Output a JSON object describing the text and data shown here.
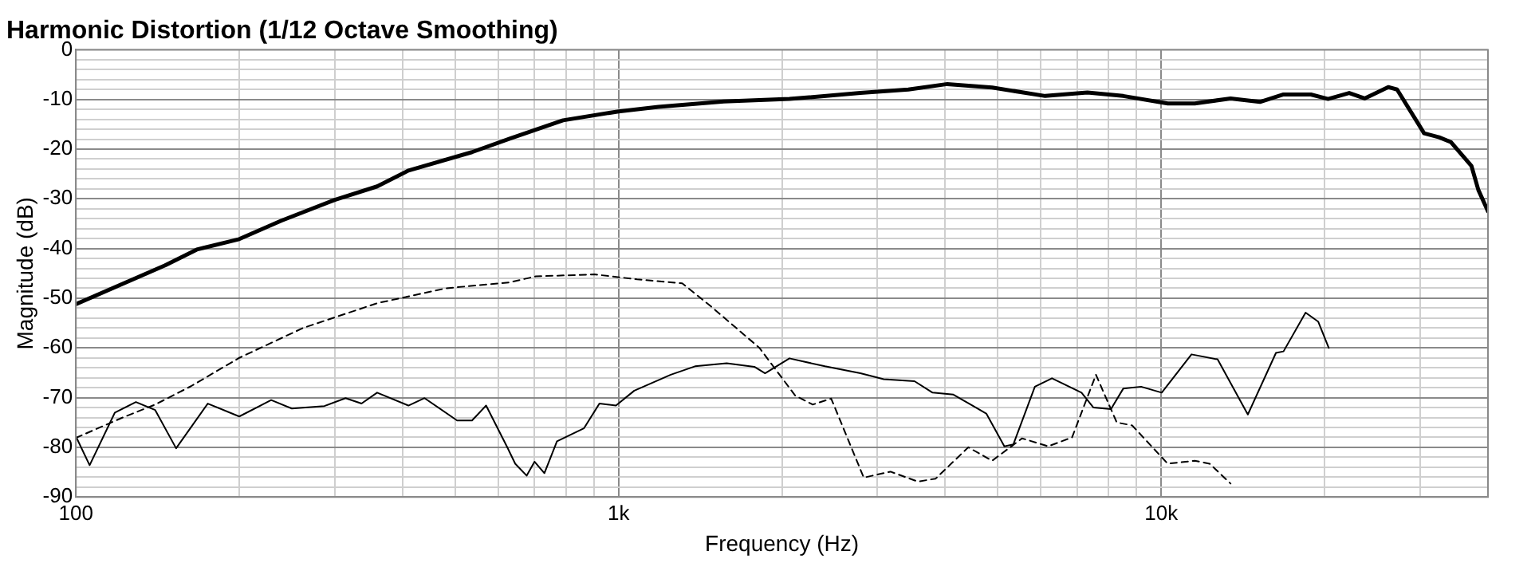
{
  "chart_data": {
    "type": "line",
    "title": "Harmonic Distortion (1/12 Octave Smoothing)",
    "xlabel": "Frequency (Hz)",
    "ylabel": "Magnitude (dB)",
    "log": "x",
    "grid": true,
    "legend": false,
    "marker": "none",
    "xlim": [
      100,
      40000
    ],
    "xticks": [
      {
        "value": 100,
        "label": "100"
      },
      {
        "value": 200,
        "label": null
      },
      {
        "value": 300,
        "label": null
      },
      {
        "value": 400,
        "label": null
      },
      {
        "value": 500,
        "label": null
      },
      {
        "value": 600,
        "label": null
      },
      {
        "value": 700,
        "label": null
      },
      {
        "value": 800,
        "label": null
      },
      {
        "value": 900,
        "label": null
      },
      {
        "value": 1000,
        "label": "1k"
      },
      {
        "value": 2000,
        "label": null
      },
      {
        "value": 3000,
        "label": null
      },
      {
        "value": 4000,
        "label": null
      },
      {
        "value": 5000,
        "label": null
      },
      {
        "value": 6000,
        "label": null
      },
      {
        "value": 7000,
        "label": null
      },
      {
        "value": 8000,
        "label": null
      },
      {
        "value": 9000,
        "label": null
      },
      {
        "value": 10000,
        "label": "10k"
      },
      {
        "value": 20000,
        "label": null
      },
      {
        "value": 30000,
        "label": null
      },
      {
        "value": 40000,
        "label": null
      }
    ],
    "ylim": [
      -90,
      0
    ],
    "yticks": [
      0,
      {
        "value": -2,
        "label": null
      },
      {
        "value": -4,
        "label": null
      },
      {
        "value": -6,
        "label": null
      },
      {
        "value": -8,
        "label": null
      },
      -10,
      {
        "value": -12,
        "label": null
      },
      {
        "value": -14,
        "label": null
      },
      {
        "value": -16,
        "label": null
      },
      {
        "value": -18,
        "label": null
      },
      -20,
      {
        "value": -22,
        "label": null
      },
      {
        "value": -24,
        "label": null
      },
      {
        "value": -26,
        "label": null
      },
      {
        "value": -28,
        "label": null
      },
      -30,
      {
        "value": -32,
        "label": null
      },
      {
        "value": -34,
        "label": null
      },
      {
        "value": -36,
        "label": null
      },
      {
        "value": -38,
        "label": null
      },
      -40,
      {
        "value": -42,
        "label": null
      },
      {
        "value": -44,
        "label": null
      },
      {
        "value": -46,
        "label": null
      },
      {
        "value": -48,
        "label": null
      },
      -50,
      {
        "value": -52,
        "label": null
      },
      {
        "value": -54,
        "label": null
      },
      {
        "value": -56,
        "label": null
      },
      {
        "value": -58,
        "label": null
      },
      -60,
      {
        "value": -62,
        "label": null
      },
      {
        "value": -64,
        "label": null
      },
      {
        "value": -66,
        "label": null
      },
      {
        "value": -68,
        "label": null
      },
      -70,
      {
        "value": -72,
        "label": null
      },
      {
        "value": -74,
        "label": null
      },
      {
        "value": -76,
        "label": null
      },
      {
        "value": -78,
        "label": null
      },
      -80,
      {
        "value": -82,
        "label": null
      },
      {
        "value": -84,
        "label": null
      },
      {
        "value": -86,
        "label": null
      },
      {
        "value": -88,
        "label": null
      },
      -90
    ],
    "series": [
      {
        "color": "#000000",
        "line_style": "solid",
        "x": [
          100,
          146,
          167,
          200,
          239,
          300,
          359,
          410,
          537,
          630,
          790,
          1000,
          1184,
          1563,
          2065,
          2790,
          3420,
          4035,
          4880,
          6110,
          7310,
          8510,
          10280,
          11530,
          13420,
          15200,
          16800,
          18870,
          20300,
          22200,
          23700,
          26200,
          27200,
          30500,
          32500,
          34200,
          37300,
          38400,
          40000
        ],
        "values": [
          -51.2,
          -43.4,
          -40.2,
          -38.1,
          -34.4,
          -30.2,
          -27.5,
          -24.3,
          -20.6,
          -17.9,
          -14.2,
          -12.4,
          -11.5,
          -10.4,
          -9.9,
          -8.7,
          -8.0,
          -6.9,
          -7.6,
          -9.3,
          -8.6,
          -9.3,
          -10.8,
          -10.8,
          -9.8,
          -10.5,
          -9.0,
          -9.0,
          -9.9,
          -8.7,
          -9.8,
          -7.5,
          -8.0,
          -16.8,
          -17.6,
          -18.6,
          -23.4,
          -28.2,
          -32.5
        ]
      },
      {
        "color": "#000000",
        "line_style": "dashed",
        "x": [
          100,
          122,
          140,
          163,
          200,
          262,
          359,
          481,
          630,
          704,
          903,
          1082,
          1310,
          1486,
          1818,
          2116,
          2280,
          2465,
          2830,
          3170,
          3560,
          3840,
          4410,
          4880,
          5540,
          6190,
          6850,
          7580,
          8280,
          8840,
          10280,
          11530,
          12280,
          13420
        ],
        "values": [
          -78.1,
          -74.0,
          -71.4,
          -67.7,
          -62.0,
          -56.0,
          -51.0,
          -48.0,
          -46.8,
          -45.6,
          -45.2,
          -46.2,
          -47.0,
          -51.8,
          -60.0,
          -69.6,
          -71.4,
          -70.2,
          -86.1,
          -84.9,
          -86.9,
          -86.3,
          -80.0,
          -82.7,
          -78.2,
          -79.8,
          -78.0,
          -65.4,
          -75.0,
          -75.6,
          -83.3,
          -82.7,
          -83.3,
          -87.3
        ]
      },
      {
        "color": "#000000",
        "line_style": "solid",
        "x": [
          100,
          106,
          118,
          129,
          140,
          153,
          175,
          200,
          229,
          250,
          287,
          314,
          336,
          359,
          410,
          439,
          504,
          537,
          570,
          623,
          645,
          677,
          700,
          730,
          770,
          863,
          922,
          989,
          1069,
          1248,
          1383,
          1582,
          1779,
          1862,
          2065,
          2400,
          2790,
          3080,
          3510,
          3790,
          4140,
          4760,
          5140,
          5340,
          5850,
          6290,
          7130,
          7500,
          8080,
          8510,
          9180,
          10020,
          11370,
          12700,
          14440,
          16270,
          16800,
          18450,
          19460,
          20360
        ],
        "values": [
          -77.8,
          -83.6,
          -73.0,
          -70.9,
          -72.5,
          -80.2,
          -71.2,
          -73.8,
          -70.5,
          -72.2,
          -71.7,
          -70.1,
          -71.2,
          -69.0,
          -71.6,
          -70.1,
          -74.6,
          -74.6,
          -71.6,
          -79.9,
          -83.3,
          -85.7,
          -82.9,
          -85.2,
          -78.8,
          -76.2,
          -71.2,
          -71.6,
          -68.6,
          -65.4,
          -63.7,
          -63.1,
          -63.8,
          -65.1,
          -62.1,
          -63.7,
          -65.1,
          -66.3,
          -66.7,
          -69.0,
          -69.4,
          -73.2,
          -79.8,
          -79.4,
          -67.8,
          -66.1,
          -69.0,
          -72.0,
          -72.3,
          -68.2,
          -67.8,
          -69.0,
          -61.3,
          -62.3,
          -73.4,
          -61.0,
          -60.7,
          -52.9,
          -54.7,
          -60.0
        ]
      }
    ]
  }
}
